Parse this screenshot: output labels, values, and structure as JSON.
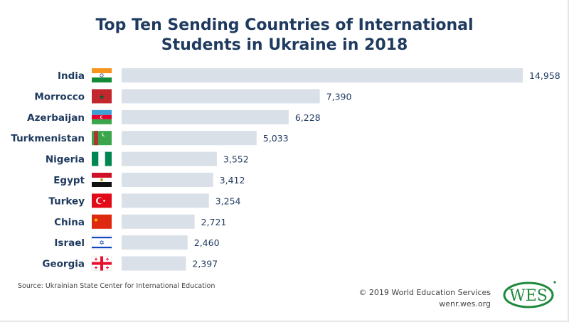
{
  "chart_data": {
    "type": "bar",
    "orientation": "horizontal",
    "title_line1": "Top Ten Sending Countries of International",
    "title_line2": "Students in Ukraine in 2018",
    "categories": [
      "India",
      "Morrocco",
      "Azerbaijan",
      "Turkmenistan",
      "Nigeria",
      "Egypt",
      "Turkey",
      "China",
      "Israel",
      "Georgia"
    ],
    "values": [
      14958,
      7390,
      6228,
      5033,
      3552,
      3412,
      3254,
      2721,
      2460,
      2397
    ],
    "value_labels": [
      "14,958",
      "7,390",
      "6,228",
      "5,033",
      "3,552",
      "3,412",
      "3,254",
      "2,721",
      "2,460",
      "2,397"
    ],
    "flag_icons": [
      "india-flag",
      "morocco-flag",
      "azerbaijan-flag",
      "turkmenistan-flag",
      "nigeria-flag",
      "egypt-flag",
      "turkey-flag",
      "china-flag",
      "israel-flag",
      "georgia-flag"
    ],
    "xlim": [
      0,
      15000
    ],
    "grid": false,
    "bar_color": "#d9e0e7",
    "label_color": "#1f3a5f"
  },
  "footer": {
    "source": "Source: Ukrainian State Center for International Education",
    "copyright": "© 2019 World Education Services",
    "website": "wenr.wes.org",
    "logo_text": "WES"
  },
  "colors": {
    "title": "#1f3a5f",
    "logo": "#1f8a3c"
  }
}
